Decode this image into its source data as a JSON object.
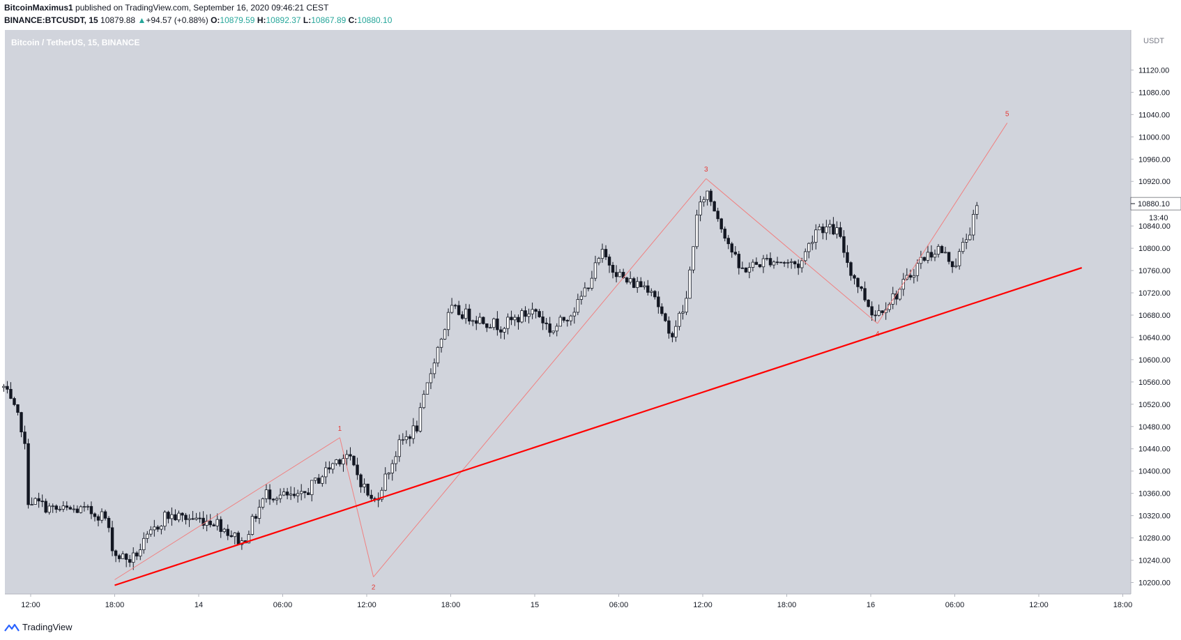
{
  "header": {
    "author": "BitcoinMaximus1",
    "published_text": "published on TradingView.com, September 16, 2020 09:46:21 CEST",
    "symbol": "BINANCE:BTCUSDT, 15",
    "last": "10879.88",
    "change": "+94.57 (+0.88%)",
    "o_label": "O:",
    "o_value": "10879.59",
    "h_label": "H:",
    "h_value": "10892.37",
    "l_label": "L:",
    "l_value": "10867.89",
    "c_label": "C:",
    "c_value": "10880.10"
  },
  "chart_data": {
    "type": "candlestick",
    "title": "Bitcoin / TetherUS, 15, BINANCE",
    "currency_label": "USDT",
    "y_ticks": [
      10200,
      10240,
      10280,
      10320,
      10360,
      10400,
      10440,
      10480,
      10520,
      10560,
      10600,
      10640,
      10680,
      10720,
      10760,
      10800,
      10840,
      10880,
      10920,
      10960,
      11000,
      11040,
      11080,
      11120
    ],
    "y_tick_labels": [
      "10200.00",
      "10240.00",
      "10280.00",
      "10320.00",
      "10360.00",
      "10400.00",
      "10440.00",
      "10480.00",
      "10520.00",
      "10560.00",
      "10600.00",
      "10640.00",
      "10680.00",
      "10720.00",
      "10760.00",
      "10800.00",
      "10840.00",
      "10880.00",
      "10920.00",
      "10960.00",
      "11000.00",
      "11040.00",
      "11080.00",
      "11120.00"
    ],
    "x_ticks": [
      {
        "t": 0.75,
        "label": "12:00"
      },
      {
        "t": 1.0,
        "label": "18:00"
      },
      {
        "t": 1.25,
        "label": "14"
      },
      {
        "t": 1.5,
        "label": "06:00"
      },
      {
        "t": 1.75,
        "label": "12:00"
      },
      {
        "t": 2.0,
        "label": "18:00"
      },
      {
        "t": 2.25,
        "label": "15"
      },
      {
        "t": 2.5,
        "label": "06:00"
      },
      {
        "t": 2.75,
        "label": "12:00"
      },
      {
        "t": 3.0,
        "label": "18:00"
      },
      {
        "t": 3.25,
        "label": "16"
      },
      {
        "t": 3.5,
        "label": "06:00"
      },
      {
        "t": 3.75,
        "label": "12:00"
      },
      {
        "t": 4.0,
        "label": "18:00"
      }
    ],
    "last_price": "10880.10",
    "last_price_value": 10880.1,
    "countdown": "13:40",
    "waves": [
      {
        "label": "",
        "t": 1.0,
        "p": 10205
      },
      {
        "label": "1",
        "t": 1.67,
        "p": 10460
      },
      {
        "label": "2",
        "t": 1.77,
        "p": 10210
      },
      {
        "label": "3",
        "t": 2.76,
        "p": 10925
      },
      {
        "label": "4",
        "t": 3.27,
        "p": 10665
      },
      {
        "label": "5",
        "t": 3.656,
        "p": 11025
      }
    ],
    "trendline": {
      "t1": 1.0,
      "p1": 10195,
      "t2": 3.878,
      "p2": 10765
    },
    "key_points": [
      {
        "t": 0.67,
        "p": 10550
      },
      {
        "t": 0.73,
        "p": 10470
      },
      {
        "t": 0.74,
        "p": 10350
      },
      {
        "t": 0.82,
        "p": 10330
      },
      {
        "t": 0.9,
        "p": 10330
      },
      {
        "t": 0.97,
        "p": 10320
      },
      {
        "t": 1.0,
        "p": 10250
      },
      {
        "t": 1.05,
        "p": 10240
      },
      {
        "t": 1.15,
        "p": 10320
      },
      {
        "t": 1.3,
        "p": 10310
      },
      {
        "t": 1.38,
        "p": 10270
      },
      {
        "t": 1.45,
        "p": 10360
      },
      {
        "t": 1.55,
        "p": 10350
      },
      {
        "t": 1.66,
        "p": 10420
      },
      {
        "t": 1.69,
        "p": 10430
      },
      {
        "t": 1.77,
        "p": 10340
      },
      {
        "t": 1.85,
        "p": 10450
      },
      {
        "t": 1.9,
        "p": 10480
      },
      {
        "t": 1.95,
        "p": 10600
      },
      {
        "t": 2.0,
        "p": 10690
      },
      {
        "t": 2.05,
        "p": 10680
      },
      {
        "t": 2.15,
        "p": 10660
      },
      {
        "t": 2.25,
        "p": 10690
      },
      {
        "t": 2.3,
        "p": 10650
      },
      {
        "t": 2.38,
        "p": 10700
      },
      {
        "t": 2.45,
        "p": 10790
      },
      {
        "t": 2.52,
        "p": 10740
      },
      {
        "t": 2.6,
        "p": 10730
      },
      {
        "t": 2.65,
        "p": 10640
      },
      {
        "t": 2.7,
        "p": 10700
      },
      {
        "t": 2.73,
        "p": 10850
      },
      {
        "t": 2.76,
        "p": 10905
      },
      {
        "t": 2.8,
        "p": 10850
      },
      {
        "t": 2.86,
        "p": 10760
      },
      {
        "t": 2.95,
        "p": 10780
      },
      {
        "t": 3.04,
        "p": 10770
      },
      {
        "t": 3.09,
        "p": 10840
      },
      {
        "t": 3.15,
        "p": 10830
      },
      {
        "t": 3.19,
        "p": 10760
      },
      {
        "t": 3.26,
        "p": 10680
      },
      {
        "t": 3.33,
        "p": 10720
      },
      {
        "t": 3.4,
        "p": 10780
      },
      {
        "t": 3.45,
        "p": 10800
      },
      {
        "t": 3.5,
        "p": 10770
      },
      {
        "t": 3.55,
        "p": 10840
      },
      {
        "t": 3.57,
        "p": 10880
      }
    ],
    "colors": {
      "plot_bg": "#d1d4dc",
      "candle": "#131722",
      "wave_line": "#f08080",
      "trend_line": "#ff0000",
      "wave_label": "#e53935",
      "axis_text": "#131722"
    }
  },
  "footer": {
    "brand": "TradingView"
  }
}
